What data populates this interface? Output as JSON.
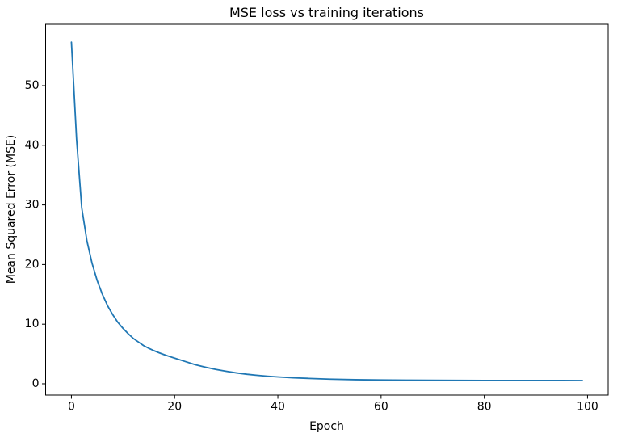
{
  "chart_data": {
    "type": "line",
    "title": "MSE loss vs training iterations",
    "xlabel": "Epoch",
    "ylabel": "Mean Squared Error (MSE)",
    "x_ticks": [
      0,
      20,
      40,
      60,
      80,
      100
    ],
    "y_ticks": [
      0,
      10,
      20,
      30,
      40,
      50
    ],
    "xlim": [
      -5.0,
      104.0
    ],
    "ylim": [
      -1.9,
      60.3
    ],
    "grid": false,
    "legend": "none",
    "background_color": "#ffffff",
    "spine_color": "#000000",
    "series": [
      {
        "name": "MSE loss",
        "color": "#1f77b4",
        "points": [
          [
            0,
            57.3
          ],
          [
            1,
            41.0
          ],
          [
            2,
            29.5
          ],
          [
            3,
            24.0
          ],
          [
            4,
            20.2
          ],
          [
            5,
            17.3
          ],
          [
            6,
            15.0
          ],
          [
            7,
            13.1
          ],
          [
            8,
            11.6
          ],
          [
            9,
            10.3
          ],
          [
            10,
            9.3
          ],
          [
            11,
            8.4
          ],
          [
            12,
            7.6
          ],
          [
            13,
            7.0
          ],
          [
            14,
            6.4
          ],
          [
            15,
            5.95
          ],
          [
            16,
            5.55
          ],
          [
            17,
            5.2
          ],
          [
            18,
            4.88
          ],
          [
            19,
            4.58
          ],
          [
            20,
            4.3
          ],
          [
            22,
            3.75
          ],
          [
            24,
            3.2
          ],
          [
            26,
            2.78
          ],
          [
            28,
            2.4
          ],
          [
            30,
            2.1
          ],
          [
            32,
            1.82
          ],
          [
            34,
            1.6
          ],
          [
            36,
            1.42
          ],
          [
            38,
            1.27
          ],
          [
            40,
            1.15
          ],
          [
            43,
            1.0
          ],
          [
            46,
            0.9
          ],
          [
            50,
            0.78
          ],
          [
            55,
            0.68
          ],
          [
            60,
            0.63
          ],
          [
            65,
            0.6
          ],
          [
            70,
            0.58
          ],
          [
            75,
            0.57
          ],
          [
            80,
            0.56
          ],
          [
            85,
            0.55
          ],
          [
            90,
            0.55
          ],
          [
            95,
            0.545
          ],
          [
            99,
            0.54
          ]
        ]
      }
    ]
  }
}
